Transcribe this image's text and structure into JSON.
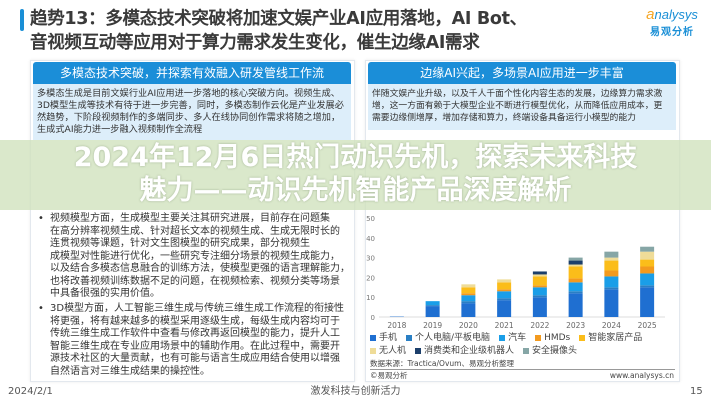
{
  "slide": {
    "title_lines": [
      "趋势13：多模态技术突破将加速文娱产业AI应用落地，AI Bot、",
      "音视频互动等应用对于算力需求发生变化，催生边缘AI需求"
    ],
    "logo": {
      "en_prefix": "a",
      "en_rest": "nalysys",
      "cn": "易观分析"
    }
  },
  "left_panel": {
    "header": "多模态技术突破，并探索有效融入研发管线工作流",
    "summary_lines": [
      "多模态生成是目前文娱行业AI应用进一步落地的核心突破方向。视频生成、",
      "3D模型生成等技术有待于进一步完善，同时，多模态制作云化是产业发展必",
      "然趋势，下阶段视频制作的多端同步、多人在线协同创作需求将随之增加，",
      "生成式AI能力进一步融入视频制作全流程"
    ],
    "bullets": [
      {
        "lines": [
          "视频模型方面，生成模型主要关注其研究进展，目前存在问题集",
          "在高分辨率视频生成、针对超长文本的视频生成、生成无限时长的",
          "连贯视频等课题，针对文生图模型的研究成果，部分视频生",
          "成模型对性能进行优化，一些研究专注细分场景的视频生成能力，",
          "以及结合多模态信息融合的训练方法，使模型更强的语言理解能力，",
          "也将改善视频训练数据不足的问题，在视频检索、视频分类等场景",
          "中具备很强的实用价值。"
        ]
      },
      {
        "lines": [
          "3D模型方面，人工智能三维生成与传统三维生成工作流程的衔接性",
          "将更强，将有越来越多的模型采用逐级生成，每级生成内容均可于",
          "传统三维生成工作软件中查看与修改再返回模型的能力，提升人工",
          "智能三维生成在专业应用场景中的辅助作用。在此过程中，需要开",
          "源技术社区的大量贡献，也有可能与语言生成应用结合使用以增强",
          "自然语言对三维生成结果的操控性。"
        ]
      }
    ]
  },
  "right_panel": {
    "header": "边缘AI兴起，多场景AI应用进一步丰富",
    "summary_lines": [
      "伴随文娱产业升级，以及千人千面个性化内容生态的发展，边缘算力需求激",
      "增，这一方面有赖于大模型企业不断进行模型优化，从而降低应用成本，更",
      "需要边缘侧增厚，增加存储和算力，终端设备具备运行小模型的能力"
    ],
    "source": "数据来源：Tractica/Ovum、易观分析整理",
    "copyright": "©易观分析",
    "website": "www.analysys.cn"
  },
  "chart_data": {
    "type": "bar",
    "stacked": true,
    "categories": [
      "2018",
      "2019",
      "2020",
      "2021",
      "2022",
      "2023",
      "2024",
      "2025"
    ],
    "ylim": [
      0,
      50
    ],
    "yticks": [
      "0",
      "10",
      "20",
      "30",
      "40",
      "50"
    ],
    "legend_position": "bottom",
    "series": [
      {
        "name": "手机",
        "color": "#1f6fd1",
        "values": [
          0.2,
          5.5,
          7,
          8.5,
          10,
          12,
          14,
          15
        ]
      },
      {
        "name": "个人电脑/平板电脑",
        "color": "#2a7fc4",
        "values": [
          0,
          0.5,
          1,
          1,
          1,
          1,
          1,
          1
        ]
      },
      {
        "name": "汽车",
        "color": "#1a9ee8",
        "values": [
          0,
          2,
          3,
          3.5,
          4,
          4.5,
          5.5,
          6
        ]
      },
      {
        "name": "HMDs",
        "color": "#f39a1e",
        "values": [
          0,
          0,
          1,
          1,
          1,
          2,
          3,
          3.5
        ]
      },
      {
        "name": "智能家居产品",
        "color": "#fbbd1a",
        "values": [
          0,
          0,
          3,
          3.5,
          4.5,
          6,
          5,
          3.5
        ]
      },
      {
        "name": "无人机",
        "color": "#efdc98",
        "values": [
          0,
          0,
          1.5,
          1.5,
          1,
          1,
          1.5,
          4
        ]
      },
      {
        "name": "消费类和企业级机器人",
        "color": "#1c3f6b",
        "values": [
          0,
          0,
          0,
          0,
          1.5,
          2,
          0,
          0
        ]
      },
      {
        "name": "安全摄像头",
        "color": "#86a6a6",
        "values": [
          0,
          0,
          0,
          0,
          0,
          1.5,
          3,
          2.5
        ]
      }
    ]
  },
  "overlay": {
    "lines": [
      "2024年12月6日热门动识先机，探索未来科技",
      "魅力——动识先机智能产品深度解析"
    ]
  },
  "footer": {
    "date": "2024/2/1",
    "center": "激发科技与创新活力",
    "page": "15"
  }
}
